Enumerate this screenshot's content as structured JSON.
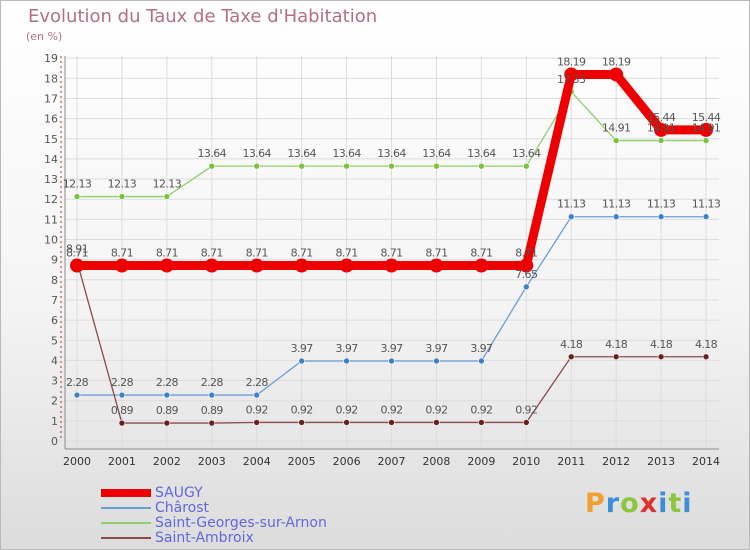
{
  "title": "Evolution du Taux de Taxe d'Habitation",
  "subtitle": "(en %)",
  "logo": {
    "text": "Proxiti",
    "letters": [
      {
        "ch": "P",
        "color": "#f0a030"
      },
      {
        "ch": "r",
        "color": "#3a8fd8"
      },
      {
        "ch": "o",
        "color": "#8cc63e"
      },
      {
        "ch": "x",
        "color": "#e03030"
      },
      {
        "ch": "i",
        "color": "#3a8fd8"
      },
      {
        "ch": "t",
        "color": "#8cc63e"
      },
      {
        "ch": "i",
        "color": "#3a8fd8"
      }
    ]
  },
  "chart_data": {
    "type": "line",
    "title": "Evolution du Taux de Taxe d'Habitation",
    "subtitle": "(en %)",
    "xlabel": "",
    "ylabel": "",
    "ylim": [
      0,
      19
    ],
    "yticks": [
      0,
      1,
      2,
      3,
      4,
      5,
      6,
      7,
      8,
      9,
      10,
      11,
      12,
      13,
      14,
      15,
      16,
      17,
      18,
      19
    ],
    "grid": true,
    "legend_position": "bottom-left",
    "x": [
      "2000",
      "2001",
      "2002",
      "2003",
      "2004",
      "2005",
      "2006",
      "2007",
      "2008",
      "2009",
      "2010",
      "2011",
      "2012",
      "2013",
      "2014"
    ],
    "series": [
      {
        "name": "SAUGY",
        "color": "#ee0000",
        "emphasis": true,
        "values": [
          8.71,
          8.71,
          8.71,
          8.71,
          8.71,
          8.71,
          8.71,
          8.71,
          8.71,
          8.71,
          8.71,
          18.19,
          18.19,
          15.44,
          15.44
        ],
        "labels": [
          "8.71",
          "8.71",
          "8.71",
          "8.71",
          "8.71",
          "8.71",
          "8.71",
          "8.71",
          "8.71",
          "8.71",
          "8.71",
          "18.19",
          "18.19",
          "15.44",
          "15.44"
        ]
      },
      {
        "name": "Chârost",
        "color": "#6a9fd6",
        "marker_color": "#3c82c9",
        "values": [
          2.28,
          2.28,
          2.28,
          2.28,
          2.28,
          3.97,
          3.97,
          3.97,
          3.97,
          3.97,
          7.65,
          11.13,
          11.13,
          11.13,
          11.13
        ],
        "labels": [
          "2.28",
          "2.28",
          "2.28",
          "2.28",
          "2.28",
          "3.97",
          "3.97",
          "3.97",
          "3.97",
          "3.97",
          "7.65",
          "11.13",
          "11.13",
          "11.13",
          "11.13"
        ]
      },
      {
        "name": "Saint-Georges-sur-Arnon",
        "color": "#8fd06a",
        "marker_color": "#78c33c",
        "values": [
          12.13,
          12.13,
          12.13,
          13.64,
          13.64,
          13.64,
          13.64,
          13.64,
          13.64,
          13.64,
          13.64,
          17.33,
          14.91,
          14.91,
          14.91
        ],
        "labels": [
          "12.13",
          "12.13",
          "12.13",
          "13.64",
          "13.64",
          "13.64",
          "13.64",
          "13.64",
          "13.64",
          "13.64",
          "13.64",
          "17.33",
          "14.91",
          "14.91",
          "14.91"
        ]
      },
      {
        "name": "Saint-Ambroix",
        "color": "#8a4a4a",
        "marker_color": "#6a1f1f",
        "values": [
          8.91,
          0.89,
          0.89,
          0.89,
          0.92,
          0.92,
          0.92,
          0.92,
          0.92,
          0.92,
          0.92,
          4.18,
          4.18,
          4.18,
          4.18
        ],
        "labels": [
          "8.91",
          "0.89",
          "0.89",
          "0.89",
          "0.92",
          "0.92",
          "0.92",
          "0.92",
          "0.92",
          "0.92",
          "0.92",
          "4.18",
          "4.18",
          "4.18",
          "4.18"
        ]
      }
    ]
  }
}
